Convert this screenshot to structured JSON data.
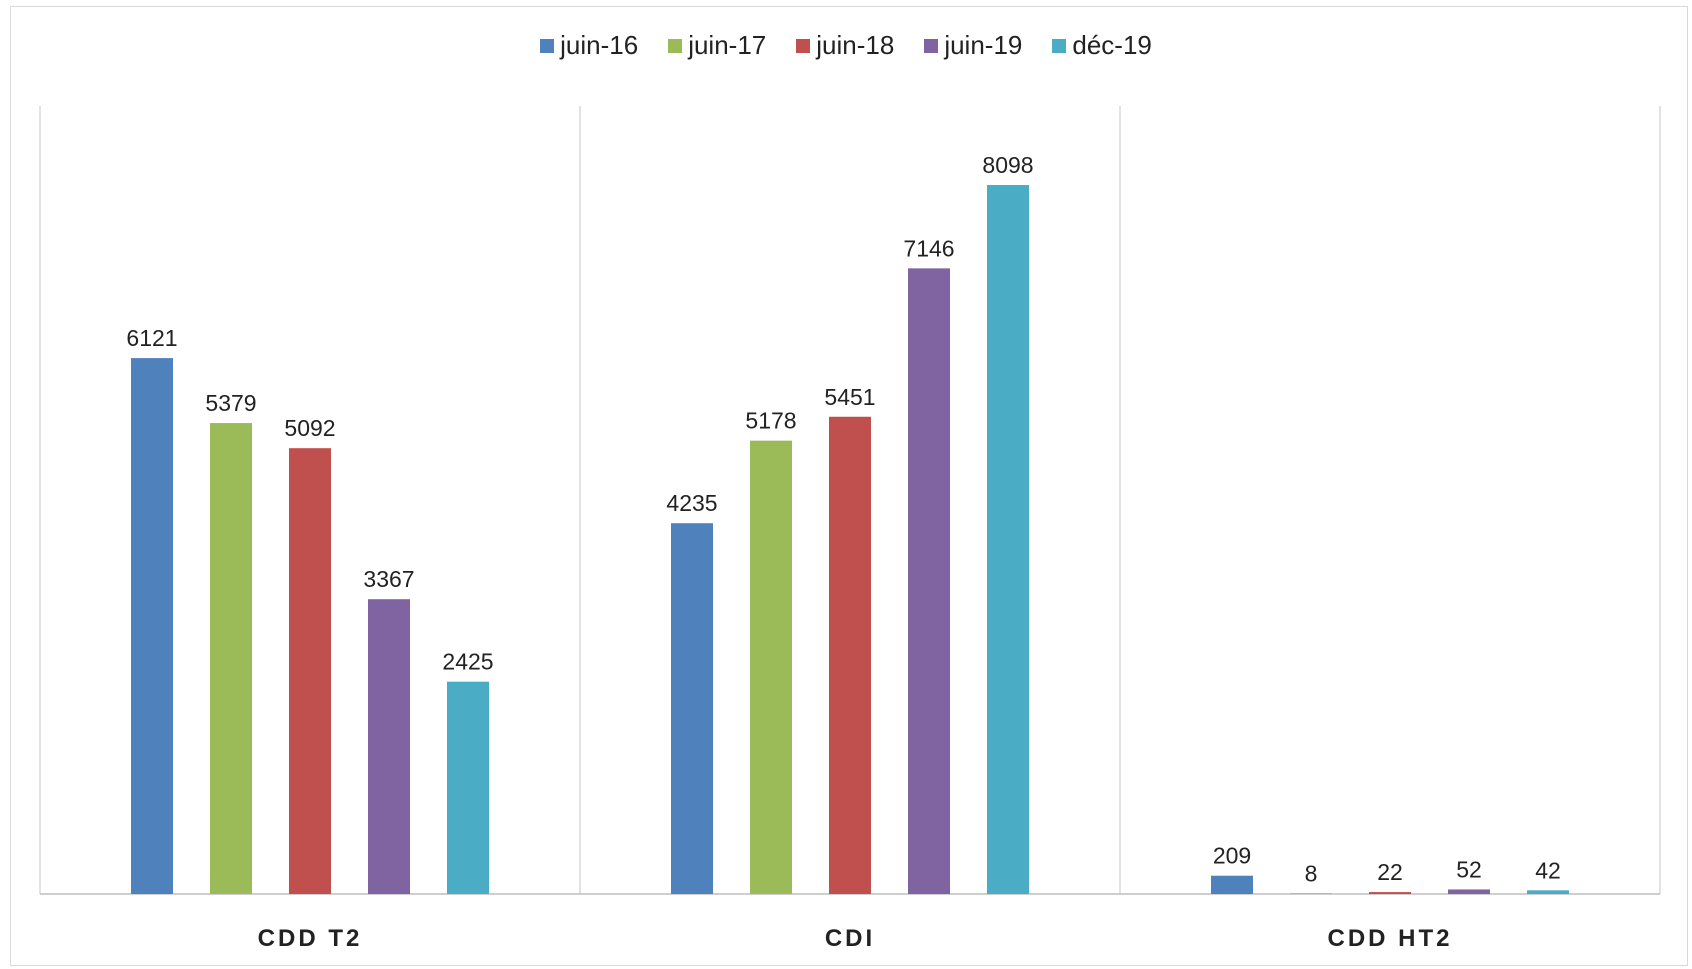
{
  "chart_data": {
    "type": "bar",
    "title": "",
    "xlabel": "",
    "ylabel": "",
    "ylim": [
      0,
      9000
    ],
    "grid": false,
    "legend_position": "top-center",
    "categories": [
      "CDD T2",
      "CDI",
      "CDD HT2"
    ],
    "series": [
      {
        "name": "juin-16",
        "color": "#4F81BD",
        "values": [
          6121,
          4235,
          209
        ]
      },
      {
        "name": "juin-17",
        "color": "#9BBB59",
        "values": [
          5379,
          5178,
          8
        ]
      },
      {
        "name": "juin-18",
        "color": "#C0504D",
        "values": [
          5092,
          5451,
          22
        ]
      },
      {
        "name": "juin-19",
        "color": "#8064A2",
        "values": [
          3367,
          7146,
          52
        ]
      },
      {
        "name": "déc-19",
        "color": "#4BACC6",
        "values": [
          2425,
          8098,
          42
        ]
      }
    ]
  }
}
